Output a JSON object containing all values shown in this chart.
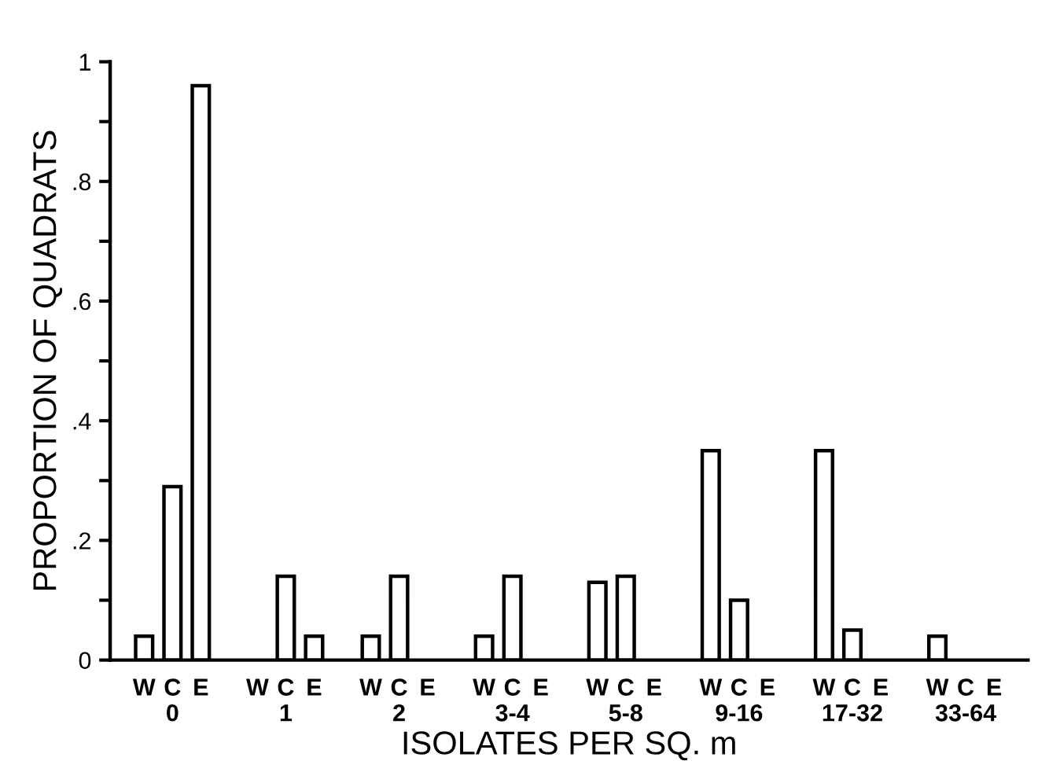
{
  "chart_data": {
    "type": "bar",
    "xlabel": "ISOLATES PER SQ. m",
    "ylabel": "PROPORTION OF QUADRATS",
    "categories": [
      "0",
      "1",
      "2",
      "3-4",
      "5-8",
      "9-16",
      "17-32",
      "33-64"
    ],
    "series": [
      {
        "name": "W",
        "color": "#ffffff",
        "values": [
          0.04,
          null,
          0.04,
          0.04,
          0.13,
          0.35,
          0.35,
          0.04
        ]
      },
      {
        "name": "C",
        "color": "#ffffff",
        "values": [
          0.29,
          0.14,
          0.14,
          0.14,
          0.14,
          0.1,
          0.05,
          null
        ]
      },
      {
        "name": "E",
        "color": "#ffffff",
        "values": [
          0.96,
          0.04,
          null,
          null,
          null,
          null,
          null,
          null
        ]
      }
    ],
    "ylim": [
      0,
      1
    ],
    "yticks": [
      0,
      {
        "value": 0.1,
        "label": null
      },
      {
        "value": 0.2,
        "label": ".2"
      },
      {
        "value": 0.3,
        "label": null
      },
      {
        "value": 0.4,
        "label": ".4"
      },
      {
        "value": 0.5,
        "label": null
      },
      {
        "value": 0.6,
        "label": ".6"
      },
      {
        "value": 0.7,
        "label": null
      },
      {
        "value": 0.8,
        "label": ".8"
      },
      {
        "value": 0.9,
        "label": null
      },
      1
    ],
    "grid": false,
    "legend": false
  }
}
